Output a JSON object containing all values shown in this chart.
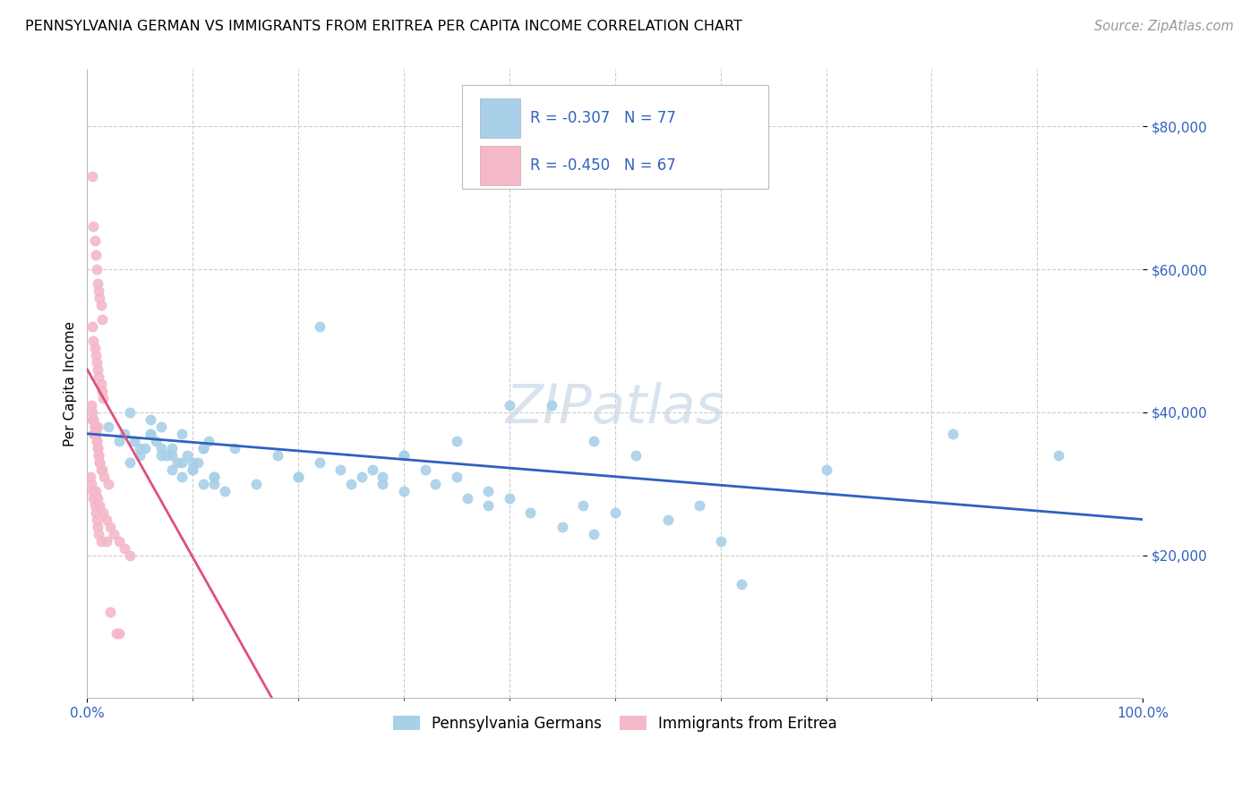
{
  "title": "PENNSYLVANIA GERMAN VS IMMIGRANTS FROM ERITREA PER CAPITA INCOME CORRELATION CHART",
  "source": "Source: ZipAtlas.com",
  "ylabel": "Per Capita Income",
  "xlim": [
    0.0,
    1.0
  ],
  "ylim": [
    0,
    88000
  ],
  "yticks": [
    20000,
    40000,
    60000,
    80000
  ],
  "ytick_labels": [
    "$20,000",
    "$40,000",
    "$60,000",
    "$80,000"
  ],
  "xtick_positions": [
    0.0,
    1.0
  ],
  "xtick_labels": [
    "0.0%",
    "100.0%"
  ],
  "xminor_ticks": [
    0.1,
    0.2,
    0.3,
    0.4,
    0.5,
    0.6,
    0.7,
    0.8,
    0.9
  ],
  "blue_R": -0.307,
  "blue_N": 77,
  "pink_R": -0.45,
  "pink_N": 67,
  "blue_color": "#a8d0e8",
  "pink_color": "#f4b8c8",
  "blue_line_color": "#3060c0",
  "pink_line_color": "#e0507a",
  "tick_label_color": "#3060c0",
  "watermark": "ZIPatlas",
  "legend_label_blue": "Pennsylvania Germans",
  "legend_label_pink": "Immigrants from Eritrea",
  "blue_scatter_x": [
    0.02,
    0.03,
    0.035,
    0.04,
    0.045,
    0.05,
    0.055,
    0.06,
    0.065,
    0.07,
    0.075,
    0.08,
    0.085,
    0.09,
    0.095,
    0.1,
    0.105,
    0.11,
    0.115,
    0.12,
    0.04,
    0.05,
    0.06,
    0.07,
    0.08,
    0.09,
    0.1,
    0.11,
    0.12,
    0.13,
    0.06,
    0.07,
    0.08,
    0.09,
    0.1,
    0.11,
    0.12,
    0.14,
    0.16,
    0.18,
    0.2,
    0.22,
    0.24,
    0.26,
    0.28,
    0.3,
    0.32,
    0.35,
    0.38,
    0.4,
    0.2,
    0.25,
    0.28,
    0.3,
    0.33,
    0.36,
    0.38,
    0.42,
    0.45,
    0.48,
    0.22,
    0.27,
    0.3,
    0.35,
    0.4,
    0.44,
    0.47,
    0.5,
    0.55,
    0.6,
    0.48,
    0.52,
    0.58,
    0.62,
    0.7,
    0.82,
    0.92
  ],
  "blue_scatter_y": [
    38000,
    36000,
    37000,
    40000,
    36000,
    34000,
    35000,
    37000,
    36000,
    38000,
    34000,
    35000,
    33000,
    37000,
    34000,
    32000,
    33000,
    35000,
    36000,
    31000,
    33000,
    35000,
    37000,
    34000,
    32000,
    31000,
    33000,
    35000,
    30000,
    29000,
    39000,
    35000,
    34000,
    33000,
    32000,
    30000,
    31000,
    35000,
    30000,
    34000,
    31000,
    33000,
    32000,
    31000,
    30000,
    34000,
    32000,
    31000,
    29000,
    28000,
    31000,
    30000,
    31000,
    29000,
    30000,
    28000,
    27000,
    26000,
    24000,
    23000,
    52000,
    32000,
    34000,
    36000,
    41000,
    41000,
    27000,
    26000,
    25000,
    22000,
    36000,
    34000,
    27000,
    16000,
    32000,
    37000,
    34000
  ],
  "pink_scatter_x": [
    0.005,
    0.006,
    0.007,
    0.008,
    0.009,
    0.01,
    0.011,
    0.012,
    0.013,
    0.014,
    0.005,
    0.006,
    0.007,
    0.008,
    0.009,
    0.01,
    0.011,
    0.013,
    0.014,
    0.015,
    0.004,
    0.005,
    0.006,
    0.007,
    0.008,
    0.009,
    0.01,
    0.011,
    0.012,
    0.013,
    0.003,
    0.004,
    0.005,
    0.006,
    0.007,
    0.008,
    0.009,
    0.01,
    0.011,
    0.013,
    0.006,
    0.007,
    0.008,
    0.009,
    0.01,
    0.011,
    0.012,
    0.014,
    0.016,
    0.02,
    0.008,
    0.01,
    0.012,
    0.015,
    0.018,
    0.022,
    0.025,
    0.03,
    0.035,
    0.04,
    0.018,
    0.022,
    0.028,
    0.03,
    0.005,
    0.006,
    0.01
  ],
  "pink_scatter_y": [
    73000,
    66000,
    64000,
    62000,
    60000,
    58000,
    57000,
    56000,
    55000,
    53000,
    52000,
    50000,
    49000,
    48000,
    47000,
    46000,
    45000,
    44000,
    43000,
    42000,
    41000,
    40000,
    39000,
    38000,
    37000,
    36000,
    35000,
    34000,
    33000,
    32000,
    31000,
    30000,
    29000,
    28000,
    27000,
    26000,
    25000,
    24000,
    23000,
    22000,
    39000,
    38000,
    37000,
    36000,
    35000,
    34000,
    33000,
    32000,
    31000,
    30000,
    29000,
    28000,
    27000,
    26000,
    25000,
    24000,
    23000,
    22000,
    21000,
    20000,
    22000,
    12000,
    9000,
    9000,
    39000,
    37000,
    38000
  ],
  "blue_line_x0": 0.0,
  "blue_line_x1": 1.0,
  "blue_line_y0": 37000,
  "blue_line_y1": 25000,
  "pink_line_x0": 0.0,
  "pink_line_x1": 0.175,
  "pink_line_y0": 46000,
  "pink_line_y1": 0,
  "title_fontsize": 11.5,
  "axis_label_fontsize": 11,
  "tick_fontsize": 11,
  "source_fontsize": 10.5,
  "legend_fontsize": 12,
  "watermark_fontsize": 44
}
